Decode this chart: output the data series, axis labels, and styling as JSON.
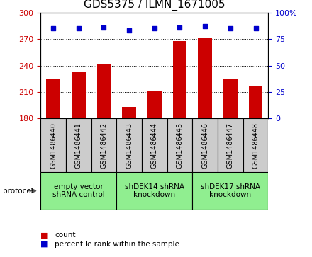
{
  "title": "GDS5375 / ILMN_1671005",
  "samples": [
    "GSM1486440",
    "GSM1486441",
    "GSM1486442",
    "GSM1486443",
    "GSM1486444",
    "GSM1486445",
    "GSM1486446",
    "GSM1486447",
    "GSM1486448"
  ],
  "counts": [
    225,
    232,
    241,
    193,
    211,
    268,
    272,
    224,
    216
  ],
  "percentile_ranks": [
    85,
    85,
    86,
    83,
    85,
    86,
    87,
    85,
    85
  ],
  "ylim_left": [
    180,
    300
  ],
  "ylim_right": [
    0,
    100
  ],
  "yticks_left": [
    180,
    210,
    240,
    270,
    300
  ],
  "yticks_right": [
    0,
    25,
    50,
    75,
    100
  ],
  "bar_color": "#cc0000",
  "scatter_color": "#0000cc",
  "bar_bottom": 180,
  "group_starts": [
    0,
    3,
    6
  ],
  "group_ends": [
    3,
    6,
    9
  ],
  "group_labels": [
    "empty vector\nshRNA control",
    "shDEK14 shRNA\nknockdown",
    "shDEK17 shRNA\nknockdown"
  ],
  "group_color": "#90ee90",
  "sample_box_color": "#cccccc",
  "legend_labels": [
    "count",
    "percentile rank within the sample"
  ],
  "legend_colors": [
    "#cc0000",
    "#0000cc"
  ],
  "protocol_label": "protocol",
  "bg_color": "#ffffff",
  "tick_color_left": "#cc0000",
  "tick_color_right": "#0000cc",
  "title_fontsize": 11,
  "tick_fontsize": 8,
  "sample_fontsize": 7,
  "group_fontsize": 7.5
}
